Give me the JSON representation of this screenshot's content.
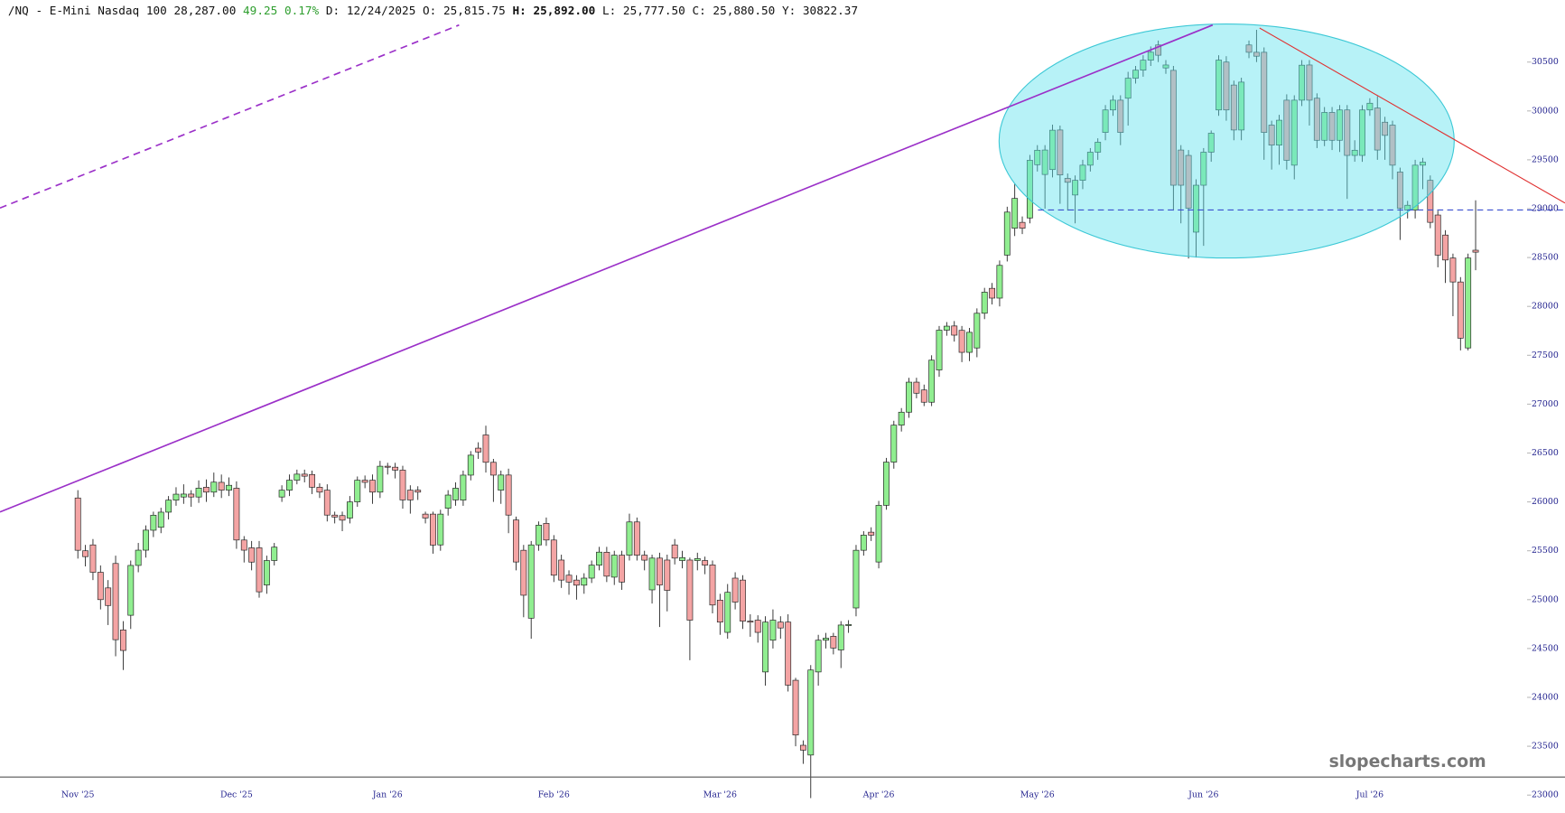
{
  "header": {
    "symbol": "/NQ - E-Mini Nasdaq 100",
    "last": "28,287.00",
    "change": "49.25",
    "change_pct": "0.17%",
    "date": "D: 12/24/2025",
    "open": "O: 25,815.75",
    "high": "H: 25,892.00",
    "low": "L: 25,777.50",
    "close": "C: 25,880.50",
    "y": "Y:  30822.37"
  },
  "watermark": "slopecharts.com",
  "chart_data": {
    "type": "candlestick",
    "categories": [
      "Nov '25",
      null,
      null,
      null,
      null,
      null,
      null,
      null,
      null,
      null,
      null,
      null,
      null,
      null,
      null,
      null,
      null,
      null,
      null,
      null,
      null,
      "Dec '25",
      null,
      null,
      null,
      null,
      null,
      null,
      null,
      null,
      null,
      null,
      null,
      null,
      null,
      null,
      null,
      null,
      null,
      null,
      null,
      "Jan '26",
      null,
      null,
      null,
      null,
      null,
      null,
      null,
      null,
      null,
      null,
      null,
      null,
      null,
      null,
      null,
      null,
      null,
      null,
      null,
      null,
      null,
      "Feb '26",
      null,
      null,
      null,
      null,
      null,
      null,
      null,
      null,
      null,
      null,
      null,
      null,
      null,
      null,
      null,
      null,
      null,
      null,
      null,
      null,
      null,
      "Mar '26",
      null,
      null,
      null,
      null,
      null,
      null,
      null,
      null,
      null,
      null,
      null,
      null,
      null,
      null,
      null,
      null,
      null,
      null,
      null,
      null,
      "Apr '26",
      null,
      null,
      null,
      null,
      null,
      null,
      null,
      null,
      null,
      null,
      null,
      null,
      null,
      null,
      null,
      null,
      null,
      null,
      null,
      null,
      "May '26",
      null,
      null,
      null,
      null,
      null,
      null,
      null,
      null,
      null,
      null,
      null,
      null,
      null,
      null,
      null,
      null,
      null,
      null,
      null,
      null,
      null,
      "Jun '26",
      null,
      null,
      null,
      null,
      null,
      null,
      null,
      null,
      null,
      null,
      null,
      null,
      null,
      null,
      null,
      null,
      null,
      null,
      null,
      null,
      null,
      "Jul '26",
      null,
      null,
      null,
      null,
      null,
      null,
      null,
      null,
      null,
      null,
      null,
      null,
      null,
      null
    ],
    "open": [
      26040,
      25500,
      25560,
      25280,
      25120,
      25370,
      24690,
      24840,
      25350,
      25506,
      25710,
      25740,
      25895,
      26018,
      26050,
      26080,
      26050,
      26150,
      26100,
      26200,
      26120,
      26140,
      25610,
      25530,
      25530,
      25150,
      25400,
      26050,
      26120,
      26222,
      26284,
      26280,
      26150,
      26120,
      25865,
      25860,
      25835,
      26000,
      26222,
      26222,
      26100,
      26365,
      26355,
      26325,
      26120,
      26120,
      25875,
      25875,
      25560,
      25935,
      26020,
      26018,
      26274,
      26550,
      26685,
      26405,
      26120,
      26275,
      25815,
      25505,
      24810,
      25560,
      25780,
      25610,
      25405,
      25250,
      25200,
      25148,
      25220,
      25353,
      25485,
      25230,
      25455,
      25455,
      25795,
      25455,
      25100,
      25425,
      25405,
      25560,
      25400,
      25405,
      25400,
      25400,
      25355,
      24995,
      24665,
      25220,
      25200,
      24780,
      24790,
      24260,
      24585,
      24770,
      24770,
      24175,
      23510,
      23410,
      24260,
      24585,
      24625,
      24485,
      24740,
      24915,
      25505,
      25690,
      25385,
      25965,
      26407,
      26785,
      26918,
      27225,
      27145,
      27020,
      27350,
      27757,
      27800,
      27755,
      27530,
      27575,
      27930,
      28185,
      28085,
      28525,
      28800,
      28860,
      28905,
      29450,
      29350,
      29400,
      29805,
      29310,
      29140,
      29290,
      29445,
      29578,
      29780,
      30010,
      30110,
      30130,
      30335,
      30417,
      30519,
      30675,
      30440,
      30415,
      29600,
      29545,
      28760,
      29240,
      29578,
      30010,
      30500,
      30265,
      29805,
      30675,
      30600,
      30600,
      29855,
      29650,
      30110,
      29445,
      30110,
      30470,
      30130,
      29700,
      29985,
      29700,
      30010,
      29545,
      29545,
      30010,
      30030,
      29885,
      29855,
      29375,
      28985,
      28985,
      29445,
      29290,
      28935,
      28730,
      28495,
      28250,
      27575,
      28575
    ],
    "high": [
      26120,
      25560,
      25620,
      25350,
      25200,
      25450,
      24780,
      25400,
      25580,
      25760,
      25900,
      25940,
      26060,
      26150,
      26180,
      26120,
      26220,
      26230,
      26300,
      26280,
      26250,
      26210,
      25650,
      25600,
      25600,
      25450,
      25580,
      26170,
      26280,
      26330,
      26330,
      26320,
      26190,
      26180,
      25900,
      25900,
      26060,
      26260,
      26270,
      26280,
      26420,
      26400,
      26400,
      26370,
      26170,
      26160,
      25900,
      25900,
      25920,
      26120,
      26200,
      26320,
      26520,
      26610,
      26780,
      26440,
      26320,
      26340,
      25850,
      25560,
      25600,
      25800,
      25840,
      25660,
      25460,
      25300,
      25250,
      25270,
      25400,
      25540,
      25540,
      25500,
      25500,
      25880,
      25840,
      25500,
      25460,
      25480,
      25460,
      25620,
      25500,
      25430,
      25480,
      25440,
      25400,
      25060,
      25160,
      25280,
      25250,
      24850,
      24840,
      24830,
      24900,
      24830,
      24850,
      24200,
      23560,
      24330,
      24640,
      24660,
      24660,
      24780,
      24790,
      25560,
      25700,
      25740,
      26010,
      26450,
      26830,
      26960,
      27270,
      27270,
      27200,
      27500,
      27800,
      27840,
      27850,
      27800,
      27780,
      27980,
      28190,
      28240,
      28470,
      29020,
      29260,
      28920,
      29550,
      29650,
      29650,
      29860,
      29850,
      29360,
      29340,
      29500,
      29620,
      29720,
      30060,
      30160,
      30160,
      30400,
      30460,
      30570,
      30660,
      30720,
      30520,
      30460,
      29650,
      29600,
      29300,
      29620,
      29800,
      30570,
      30560,
      30310,
      30340,
      30720,
      30830,
      30650,
      29900,
      29960,
      30170,
      30160,
      30520,
      30520,
      30180,
      30040,
      30040,
      30060,
      30060,
      29700,
      30060,
      30130,
      30150,
      29940,
      29900,
      29420,
      29080,
      29500,
      29520,
      29340,
      28980,
      28780,
      28540,
      28300,
      28540,
      29085
    ],
    "low": [
      25420,
      25340,
      25200,
      24900,
      24740,
      24420,
      24280,
      24700,
      25280,
      25430,
      25640,
      25680,
      25820,
      25960,
      25980,
      25950,
      25990,
      26000,
      26050,
      26040,
      26060,
      25520,
      25380,
      25300,
      25020,
      25060,
      25350,
      26000,
      26060,
      26180,
      26200,
      26080,
      26040,
      25800,
      25780,
      25700,
      25780,
      25950,
      26140,
      25980,
      26040,
      26280,
      26240,
      25930,
      25880,
      26020,
      25780,
      25470,
      25500,
      25860,
      25960,
      25960,
      26220,
      26440,
      26300,
      26000,
      25980,
      25680,
      25300,
      24820,
      24600,
      25500,
      25550,
      25180,
      25120,
      25050,
      25000,
      25060,
      25170,
      25300,
      25180,
      25150,
      25100,
      25400,
      25400,
      25300,
      24960,
      24720,
      24880,
      25360,
      25320,
      24380,
      25300,
      25260,
      24860,
      24640,
      24600,
      24900,
      24700,
      24620,
      24560,
      24120,
      24500,
      24600,
      24060,
      23500,
      23320,
      22970,
      24120,
      24500,
      24440,
      24300,
      24660,
      24830,
      25450,
      25600,
      25320,
      25920,
      26340,
      26720,
      26860,
      27060,
      26980,
      26980,
      27280,
      27700,
      27640,
      27430,
      27440,
      27480,
      27870,
      28020,
      28000,
      28460,
      28720,
      28740,
      28850,
      29380,
      29000,
      29320,
      29050,
      28980,
      28850,
      29200,
      29380,
      29500,
      29700,
      29950,
      29650,
      29850,
      30280,
      30350,
      30460,
      30500,
      30380,
      28980,
      28850,
      28490,
      28500,
      28620,
      29480,
      29950,
      29900,
      29700,
      29700,
      30540,
      30500,
      29500,
      29400,
      29450,
      29400,
      29300,
      30050,
      29850,
      29620,
      29640,
      29600,
      29580,
      29100,
      29480,
      29480,
      29950,
      29500,
      29500,
      29300,
      28680,
      28900,
      28900,
      29200,
      28800,
      28400,
      28240,
      27900,
      27550,
      27550,
      28370
    ],
    "close": [
      25505,
      25440,
      25280,
      25000,
      24940,
      24590,
      24480,
      25350,
      25506,
      25711,
      25864,
      25895,
      26018,
      26079,
      26080,
      26050,
      26141,
      26100,
      26202,
      26120,
      26170,
      25610,
      25506,
      25384,
      25080,
      25400,
      25537,
      26120,
      26222,
      26284,
      26263,
      26150,
      26100,
      25865,
      25845,
      25813,
      26000,
      26222,
      26200,
      26100,
      26365,
      26355,
      26325,
      26020,
      26020,
      26100,
      25835,
      25558,
      25875,
      26070,
      26140,
      26274,
      26478,
      26510,
      26405,
      26274,
      26275,
      25865,
      25385,
      25045,
      25560,
      25762,
      25610,
      25250,
      25200,
      25180,
      25148,
      25220,
      25353,
      25486,
      25240,
      25455,
      25180,
      25795,
      25455,
      25404,
      25425,
      25150,
      25095,
      25425,
      25430,
      24790,
      25420,
      25353,
      24945,
      24770,
      25075,
      24975,
      24780,
      24770,
      24665,
      24770,
      24790,
      24710,
      24125,
      23615,
      23460,
      24280,
      24585,
      24606,
      24505,
      24740,
      24745,
      25505,
      25660,
      25660,
      25965,
      26407,
      26785,
      26918,
      27225,
      27112,
      27020,
      27450,
      27757,
      27798,
      27706,
      27530,
      27735,
      27930,
      28146,
      28085,
      28420,
      28965,
      29105,
      28800,
      29495,
      29598,
      29600,
      29803,
      29345,
      29270,
      29290,
      29445,
      29578,
      29680,
      30010,
      30110,
      29780,
      30335,
      30417,
      30519,
      30601,
      30570,
      30470,
      29240,
      29240,
      29005,
      29240,
      29578,
      29772,
      30520,
      30010,
      29805,
      30295,
      30600,
      30560,
      29780,
      29650,
      29905,
      29495,
      30110,
      30468,
      30110,
      29700,
      29985,
      29700,
      30010,
      29545,
      29598,
      30010,
      30079,
      29600,
      29750,
      29445,
      29005,
      29035,
      29445,
      29476,
      28860,
      28525,
      28475,
      28250,
      27675,
      28495,
      28555
    ],
    "up_color": "#90ee90",
    "down_color": "#f4a4a4",
    "ylim": [
      22950,
      31135
    ],
    "yticks": [
      23000,
      23500,
      24000,
      24500,
      25000,
      25500,
      26000,
      26500,
      27000,
      27500,
      28000,
      28500,
      29000,
      29500,
      30000,
      30500
    ]
  }
}
